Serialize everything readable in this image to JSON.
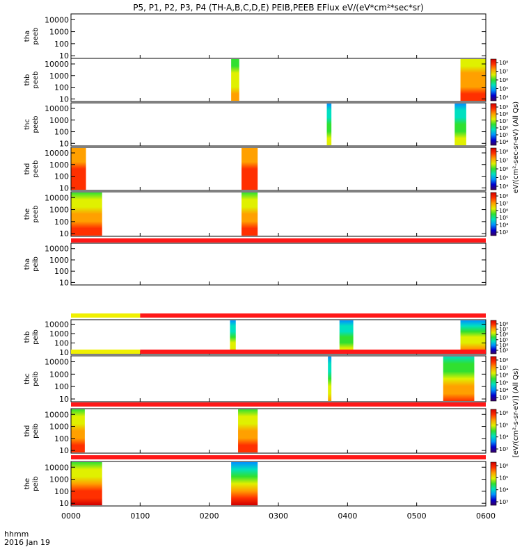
{
  "chart_data": {
    "type": "heatmap",
    "title": "P5, P1, P2, P3, P4 (TH-A,B,C,D,E) PEIB,PEEB EFlux eV/(eV*cm²*sec*sr)",
    "x_ticks": [
      "0000",
      "0100",
      "0200",
      "0300",
      "0400",
      "0500",
      "0600"
    ],
    "x_range_hhmm": [
      "0000",
      "0600"
    ],
    "x_axis_label": [
      "hhmm",
      "2016 Jan 19"
    ],
    "y_ticks": [
      "10",
      "100",
      "1000",
      "10000"
    ],
    "y_scale": "log",
    "y_range": [
      6,
      30000
    ],
    "colormap": [
      "#3a0060",
      "#0000d0",
      "#0090ff",
      "#00e0c0",
      "#30e030",
      "#e0f000",
      "#ffa000",
      "#ff3000",
      "#d00000"
    ],
    "bar_colors": {
      "yellow": "#f0f000",
      "red": "#ff1818"
    },
    "panels": [
      {
        "id": "tha-peeb",
        "label": [
          "tha",
          "peeb"
        ],
        "colorbar": false,
        "ticks": [],
        "bursts": []
      },
      {
        "id": "thb-peeb",
        "label": [
          "thb",
          "peeb"
        ],
        "colorbar": true,
        "ticks": [
          "10⁸",
          "10⁷",
          "10⁶",
          "10⁵",
          "10⁴"
        ],
        "bursts": [
          {
            "start": "0219",
            "end": "0226",
            "low": 0.55,
            "high": 0.8
          },
          {
            "start": "0538",
            "end": "0600",
            "low": 0.65,
            "high": 0.88
          }
        ]
      },
      {
        "id": "thc-peeb",
        "label": [
          "thc",
          "peeb"
        ],
        "colorbar": true,
        "ticks": [
          "10⁹",
          "10⁸",
          "10⁷",
          "10⁶",
          "10⁵",
          "10⁴"
        ],
        "bursts": [
          {
            "start": "0342",
            "end": "0346",
            "low": 0.25,
            "high": 0.6
          },
          {
            "start": "0533",
            "end": "0543",
            "low": 0.3,
            "high": 0.68
          }
        ]
      },
      {
        "id": "thd-peeb",
        "label": [
          "thd",
          "peeb"
        ],
        "colorbar": true,
        "ticks": [
          "10⁸",
          "10⁷",
          "10⁶",
          "10⁵",
          "10⁴"
        ],
        "bursts": [
          {
            "start": "0000",
            "end": "0013",
            "low": 0.72,
            "high": 0.88
          },
          {
            "start": "0228",
            "end": "0242",
            "low": 0.78,
            "high": 0.92
          }
        ]
      },
      {
        "id": "the-peeb",
        "label": [
          "the",
          "peeb"
        ],
        "colorbar": true,
        "ticks": [
          "10⁸",
          "10⁷",
          "10⁶",
          "10⁵",
          "10⁴",
          "10³"
        ],
        "bursts": [
          {
            "start": "0000",
            "end": "0027",
            "low": 0.55,
            "high": 0.92
          },
          {
            "start": "0228",
            "end": "0242",
            "low": 0.55,
            "high": 0.92
          }
        ]
      },
      {
        "id": "tha-peib",
        "label": [
          "tha",
          "peib"
        ],
        "colorbar": false,
        "ticks": [],
        "bursts": []
      },
      {
        "id": "thb-peib",
        "label": [
          "thb",
          "peib"
        ],
        "colorbar": true,
        "ticks": [
          "10⁸",
          "10⁷",
          "10⁶",
          "10⁵",
          "10⁴",
          "10³"
        ],
        "bursts": [
          {
            "start": "0218",
            "end": "0223",
            "low": 0.25,
            "high": 0.8
          },
          {
            "start": "0353",
            "end": "0405",
            "low": 0.25,
            "high": 0.65
          },
          {
            "start": "0538",
            "end": "0600",
            "low": 0.28,
            "high": 0.85
          }
        ]
      },
      {
        "id": "thc-peib",
        "label": [
          "thc",
          "peib"
        ],
        "colorbar": true,
        "ticks": [
          "10⁸",
          "10⁷",
          "10⁶",
          "10⁵",
          "10⁴",
          "10³"
        ],
        "bursts": [
          {
            "start": "0343",
            "end": "0346",
            "low": 0.3,
            "high": 0.75
          },
          {
            "start": "0523",
            "end": "0550",
            "low": 0.35,
            "high": 0.9
          }
        ]
      },
      {
        "id": "thd-peib",
        "label": [
          "thd",
          "peib"
        ],
        "colorbar": true,
        "ticks": [
          "10⁶",
          "10⁵",
          "10⁴",
          "10³"
        ],
        "bursts": [
          {
            "start": "0000",
            "end": "0012",
            "low": 0.5,
            "high": 0.92
          },
          {
            "start": "0225",
            "end": "0242",
            "low": 0.45,
            "high": 0.92
          }
        ]
      },
      {
        "id": "the-peib",
        "label": [
          "the",
          "peib"
        ],
        "colorbar": true,
        "ticks": [
          "10⁶",
          "10⁵",
          "10⁴",
          "10³"
        ],
        "bursts": [
          {
            "start": "0000",
            "end": "0027",
            "low": 0.45,
            "high": 0.95
          },
          {
            "start": "0219",
            "end": "0242",
            "low": 0.3,
            "high": 0.95
          }
        ]
      }
    ],
    "mode_bars": [
      {
        "after_panel": "the-peeb",
        "segments": [
          {
            "start": "0000",
            "end": "0600",
            "color": "red"
          }
        ]
      },
      {
        "after_panel": "tha-peib",
        "segments": [
          {
            "start": "0000",
            "end": "0100",
            "color": "yellow"
          },
          {
            "start": "0100",
            "end": "0600",
            "color": "red"
          }
        ]
      },
      {
        "after_panel": "thb-peib",
        "segments": [
          {
            "start": "0000",
            "end": "0100",
            "color": "yellow"
          },
          {
            "start": "0100",
            "end": "0600",
            "color": "red"
          }
        ]
      },
      {
        "after_panel": "thc-peib",
        "segments": [
          {
            "start": "0000",
            "end": "0600",
            "color": "red"
          }
        ]
      },
      {
        "after_panel": "thd-peib",
        "segments": [
          {
            "start": "0000",
            "end": "0600",
            "color": "red"
          }
        ]
      }
    ],
    "colorbar_titles": [
      "eV/(cm²-sec-sr-eV) (All Qs)",
      "[eV/(cm²-s-sr-eV)] (All Qs)"
    ]
  }
}
